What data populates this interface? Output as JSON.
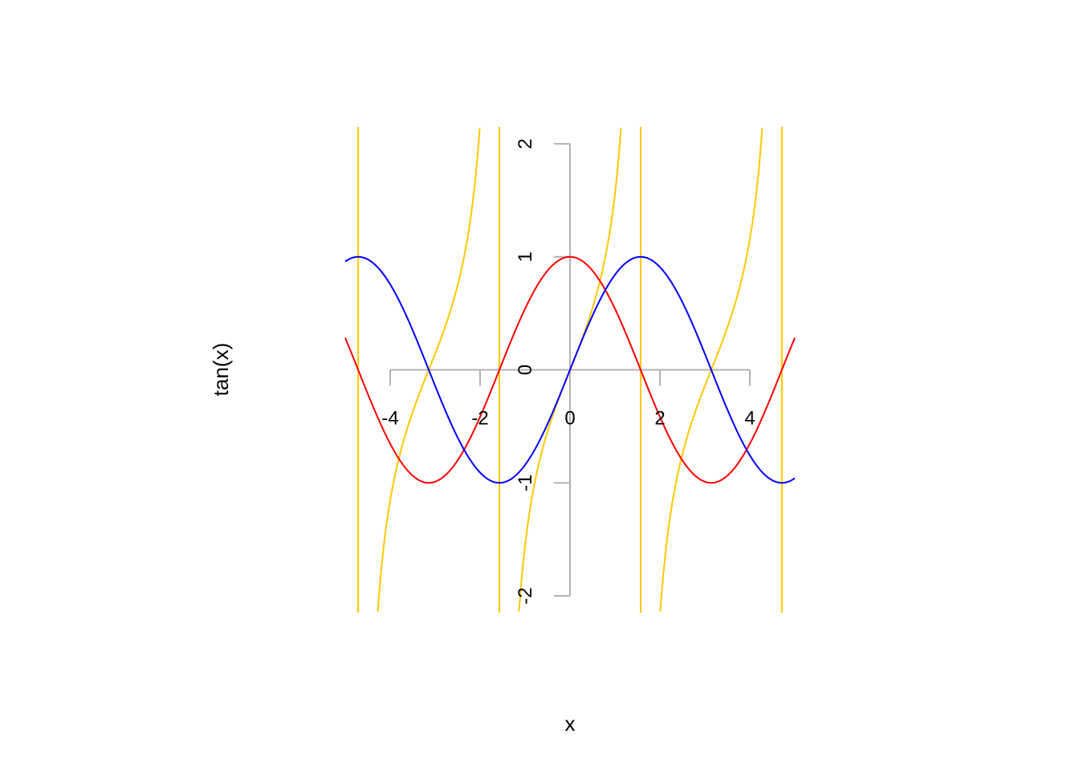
{
  "chart_data": {
    "type": "line",
    "title": "",
    "xlabel": "x",
    "ylabel": "tan(x)",
    "xlim": [
      -5,
      5
    ],
    "ylim": [
      -2.15,
      2.15
    ],
    "grid": false,
    "legend": "none",
    "x_ticks": [
      -4,
      -2,
      0,
      2,
      4
    ],
    "y_ticks": [
      -2,
      -1,
      0,
      1,
      2
    ],
    "x_tick_labels": [
      "-4",
      "-2",
      "0",
      "2",
      "4"
    ],
    "y_tick_labels": [
      "-2",
      "-1",
      "0",
      "1",
      "2"
    ],
    "axis_color": "#b3b3b3",
    "series": [
      {
        "function": "tan",
        "color": "#ffc800"
      },
      {
        "function": "cos",
        "color": "#ff0000"
      },
      {
        "function": "sin",
        "color": "#0000ff"
      }
    ],
    "vertical_lines": {
      "x": [
        -4.712,
        -1.571,
        1.571,
        4.712
      ],
      "color": "#ffc800"
    }
  }
}
